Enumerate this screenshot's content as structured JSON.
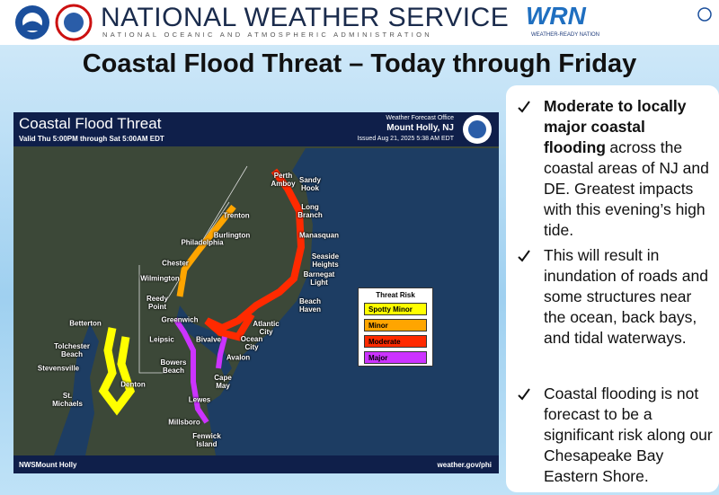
{
  "header": {
    "agency": "NATIONAL WEATHER SERVICE",
    "subtitle": "NATIONAL OCEANIC AND ATMOSPHERIC ADMINISTRATION",
    "logo": "WRN",
    "brand": "WEATHER-READY NATION"
  },
  "title": "Coastal Flood Threat – Today through Friday",
  "map": {
    "title": "Coastal Flood Threat",
    "valid": "Valid Thu 5:00PM through Sat 5:00AM EDT",
    "office": "Weather Forecast Office",
    "office_name": "Mount Holly, NJ",
    "issued": "Issued Aug 21, 2025 5:38 AM EDT",
    "social": "NWSMount Holly",
    "website": "weather.gov/phi",
    "legend": {
      "title": "Threat Risk",
      "items": [
        {
          "label": "Spotty Minor",
          "color": "#ffff00"
        },
        {
          "label": "Minor",
          "color": "#ffa500"
        },
        {
          "label": "Moderate",
          "color": "#ff2a00"
        },
        {
          "label": "Major",
          "color": "#cc33ff"
        }
      ]
    },
    "places": [
      "Perth Amboy",
      "Sandy Hook",
      "Long Branch",
      "Trenton",
      "Manasquan",
      "Burlington",
      "Philadelphia",
      "Seaside Heights",
      "Chester",
      "Wilmington",
      "Barnegat Light",
      "Beach Haven",
      "Reedy Point",
      "Greenwich",
      "Atlantic City",
      "Betterton",
      "Leipsic",
      "Bivalve",
      "Ocean City",
      "Tolchester Beach",
      "Avalon",
      "Bowers Beach",
      "Stevensville",
      "Denton",
      "Cape May",
      "St. Michaels",
      "Lewes",
      "Millsboro",
      "Fenwick Island"
    ]
  },
  "bullets": [
    {
      "strong": "Moderate to locally major coastal flooding",
      "text": "across the coastal areas of NJ and DE. Greatest impacts with this evening’s high tide."
    },
    {
      "text": "This will result in inundation of roads and some structures near the ocean, back bays, and tidal waterways."
    },
    {
      "text": "Coastal flooding is not forecast to be a significant risk along our Chesapeake Bay Eastern Shore."
    }
  ]
}
